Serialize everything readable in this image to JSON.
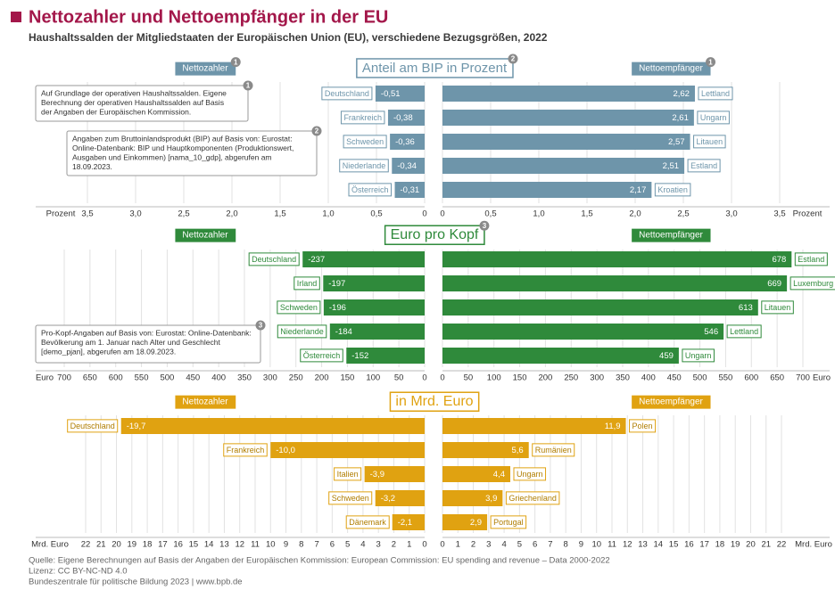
{
  "header": {
    "title": "Nettozahler und Nettoempfänger in der EU",
    "subtitle": "Haushaltssalden der Mitgliedstaaten der Europäischen Union (EU), verschiedene Bezugsgrößen, 2022"
  },
  "chart_data": [
    {
      "type": "butterfly",
      "title": "Anteil am BIP in Prozent",
      "title_ref": "2",
      "color": "#6e95aa",
      "unit": "Prozent",
      "left": {
        "name": "Nettozahler",
        "ref": "1",
        "categories": [
          "Deutschland",
          "Frankreich",
          "Schweden",
          "Niederlande",
          "Österreich"
        ],
        "values": [
          -0.51,
          -0.38,
          -0.36,
          -0.34,
          -0.31
        ],
        "value_labels": [
          "-0,51",
          "-0,38",
          "-0,36",
          "-0,34",
          "-0,31"
        ]
      },
      "right": {
        "name": "Nettoempfänger",
        "ref": "1",
        "categories": [
          "Lettland",
          "Ungarn",
          "Litauen",
          "Estland",
          "Kroatien"
        ],
        "values": [
          2.62,
          2.61,
          2.57,
          2.51,
          2.17
        ],
        "value_labels": [
          "2,62",
          "2,61",
          "2,57",
          "2,51",
          "2,17"
        ]
      },
      "xlim": [
        0,
        3.5
      ],
      "xticks": [
        0,
        {
          "value": 0.5,
          "label": "0,5"
        },
        {
          "value": 1.0,
          "label": "1,0"
        },
        {
          "value": 1.5,
          "label": "1,5"
        },
        {
          "value": 2.0,
          "label": "2,0"
        },
        {
          "value": 2.5,
          "label": "2,5"
        },
        {
          "value": 3.0,
          "label": "3,0"
        },
        {
          "value": 3.5,
          "label": "3,5"
        }
      ],
      "grid": true,
      "notes": [
        {
          "ref": "1",
          "lines": [
            "Auf Grundlage der operativen Haushaltssalden. Eigene",
            "Berechnung der operativen Haushaltssalden auf Basis",
            "der Angaben der Europäischen Kommission."
          ]
        },
        {
          "ref": "2",
          "lines": [
            "Angaben zum Bruttoinlandsprodukt (BIP) auf Basis von: Eurostat:",
            "Online-Datenbank: BIP und Hauptkomponenten (Produktionswert,",
            "Ausgaben und Einkommen) [nama_10_gdp], abgerufen am",
            "18.09.2023."
          ]
        }
      ]
    },
    {
      "type": "butterfly",
      "title": "Euro pro Kopf",
      "title_ref": "3",
      "color": "#2f8a3b",
      "unit": "Euro",
      "left": {
        "name": "Nettozahler",
        "categories": [
          "Deutschland",
          "Irland",
          "Schweden",
          "Niederlande",
          "Österreich"
        ],
        "values": [
          -237,
          -197,
          -196,
          -184,
          -152
        ]
      },
      "right": {
        "name": "Nettoempfänger",
        "categories": [
          "Estland",
          "Luxemburg",
          "Litauen",
          "Lettland",
          "Ungarn"
        ],
        "values": [
          678,
          669,
          613,
          546,
          459
        ]
      },
      "xlim": [
        0,
        700
      ],
      "xticks": [
        0,
        50,
        100,
        150,
        200,
        250,
        300,
        350,
        400,
        450,
        500,
        550,
        600,
        650,
        700
      ],
      "grid": true,
      "notes": [
        {
          "ref": "3",
          "lines": [
            "Pro-Kopf-Angaben auf Basis von: Eurostat: Online-Datenbank:",
            "Bevölkerung am 1. Januar nach Alter und Geschlecht",
            "[demo_pjan], abgerufen am 18.09.2023."
          ]
        }
      ]
    },
    {
      "type": "butterfly",
      "title": "in Mrd. Euro",
      "color": "#e0a211",
      "unit": "Mrd. Euro",
      "left": {
        "name": "Nettozahler",
        "categories": [
          "Deutschland",
          "Frankreich",
          "Italien",
          "Schweden",
          "Dänemark"
        ],
        "values": [
          -19.7,
          -10.0,
          -3.9,
          -3.2,
          -2.1
        ],
        "value_labels": [
          "-19,7",
          "-10,0",
          "-3,9",
          "-3,2",
          "-2,1"
        ]
      },
      "right": {
        "name": "Nettoempfänger",
        "categories": [
          "Polen",
          "Rumänien",
          "Ungarn",
          "Griechenland",
          "Portugal"
        ],
        "values": [
          11.9,
          5.6,
          4.4,
          3.9,
          2.9
        ],
        "value_labels": [
          "11,9",
          "5,6",
          "4,4",
          "3,9",
          "2,9"
        ]
      },
      "xlim": [
        0,
        22
      ],
      "xticks": [
        0,
        1,
        2,
        3,
        4,
        5,
        6,
        7,
        8,
        9,
        10,
        11,
        12,
        13,
        14,
        15,
        16,
        17,
        18,
        19,
        20,
        21,
        22
      ],
      "grid": true,
      "notes": []
    }
  ],
  "footer": [
    "Quelle: Eigene Berechnungen auf Basis der Angaben der Europäischen Kommission: European Commission: EU spending and revenue – Data 2000-2022",
    "Lizenz: CC BY-NC-ND 4.0",
    "Bundeszentrale für politische Bildung 2023 | www.bpb.de"
  ]
}
